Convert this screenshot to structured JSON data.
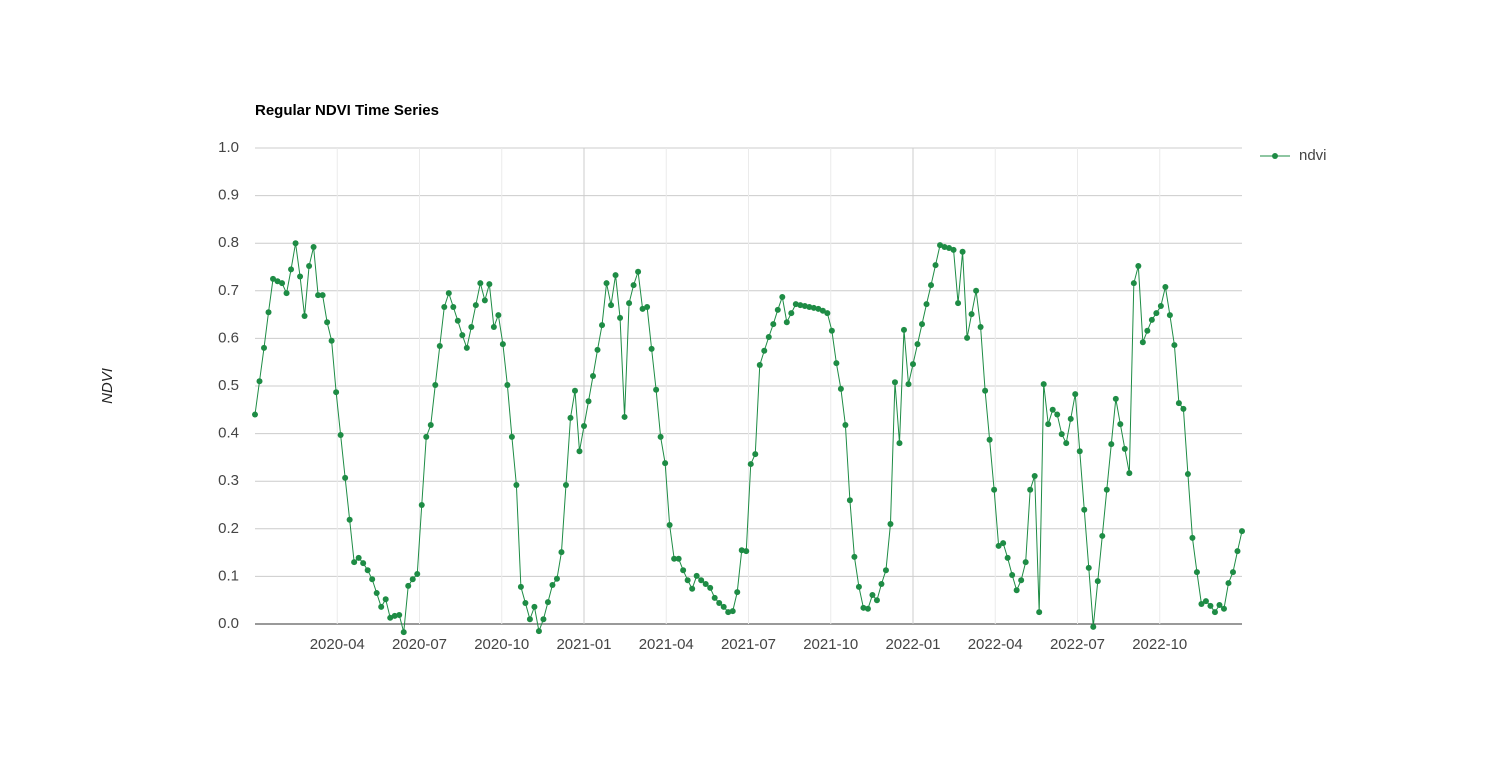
{
  "chart_data": {
    "type": "line",
    "title": "Regular NDVI Time Series",
    "y_label": "NDVI",
    "xlim": [
      "2020-01",
      "2023-01"
    ],
    "xticks": [
      "2020-04",
      "2020-07",
      "2020-10",
      "2021-01",
      "2021-04",
      "2021-07",
      "2021-10",
      "2022-01",
      "2022-04",
      "2022-07",
      "2022-10"
    ],
    "ylim": [
      0,
      1
    ],
    "yticks": [
      {
        "value": 0,
        "label": "0.0"
      },
      0.1,
      0.2,
      0.3,
      0.4,
      0.5,
      0.6,
      0.7,
      0.8,
      0.9,
      {
        "value": 1,
        "label": "1.0"
      }
    ],
    "grid": true,
    "legend": "right",
    "series": [
      {
        "name": "ndvi",
        "color": "#1e8c45",
        "values": [
          0.44,
          0.51,
          0.58,
          0.655,
          0.725,
          0.72,
          0.716,
          0.695,
          0.745,
          0.8,
          0.73,
          0.647,
          0.752,
          0.792,
          0.691,
          0.691,
          0.634,
          0.595,
          0.487,
          0.397,
          0.307,
          0.219,
          0.13,
          0.139,
          0.128,
          0.113,
          0.094,
          0.065,
          0.036,
          0.052,
          0.013,
          0.017,
          0.019,
          -0.017,
          0.08,
          0.094,
          0.105,
          0.25,
          0.393,
          0.418,
          0.502,
          0.584,
          0.666,
          0.695,
          0.666,
          0.637,
          0.607,
          0.58,
          0.624,
          0.67,
          0.716,
          0.68,
          0.714,
          0.624,
          0.649,
          0.588,
          0.502,
          0.393,
          0.292,
          0.078,
          0.044,
          0.01,
          0.036,
          -0.015,
          0.01,
          0.046,
          0.082,
          0.095,
          0.151,
          0.292,
          0.433,
          0.49,
          0.363,
          0.416,
          0.468,
          0.521,
          0.576,
          0.628,
          0.716,
          0.67,
          0.733,
          0.643,
          0.435,
          0.674,
          0.712,
          0.74,
          0.662,
          0.666,
          0.578,
          0.492,
          0.393,
          0.338,
          0.208,
          0.137,
          0.137,
          0.113,
          0.092,
          0.074,
          0.101,
          0.092,
          0.084,
          0.076,
          0.055,
          0.044,
          0.036,
          0.025,
          0.027,
          0.067,
          0.155,
          0.153,
          0.336,
          0.357,
          0.544,
          0.574,
          0.603,
          0.63,
          0.66,
          0.687,
          0.634,
          0.653,
          0.672,
          0.67,
          0.668,
          0.666,
          0.664,
          0.662,
          0.658,
          0.653,
          0.616,
          0.548,
          0.494,
          0.418,
          0.26,
          0.141,
          0.078,
          0.034,
          0.032,
          0.061,
          0.05,
          0.084,
          0.113,
          0.21,
          0.508,
          0.38,
          0.618,
          0.504,
          0.546,
          0.588,
          0.63,
          0.672,
          0.712,
          0.754,
          0.796,
          0.792,
          0.79,
          0.786,
          0.674,
          0.782,
          0.601,
          0.651,
          0.7,
          0.624,
          0.49,
          0.387,
          0.282,
          0.164,
          0.17,
          0.139,
          0.103,
          0.071,
          0.092,
          0.13,
          0.282,
          0.311,
          0.025,
          0.504,
          0.42,
          0.45,
          0.44,
          0.399,
          0.38,
          0.431,
          0.483,
          0.363,
          0.24,
          0.118,
          -0.006,
          0.09,
          0.185,
          0.282,
          0.378,
          0.473,
          0.42,
          0.368,
          0.317,
          0.716,
          0.752,
          0.592,
          0.616,
          0.639,
          0.653,
          0.668,
          0.708,
          0.649,
          0.586,
          0.464,
          0.452,
          0.315,
          0.181,
          0.109,
          0.042,
          0.048,
          0.038,
          0.025,
          0.04,
          0.032,
          0.086,
          0.109,
          0.153,
          0.195
        ]
      }
    ]
  }
}
